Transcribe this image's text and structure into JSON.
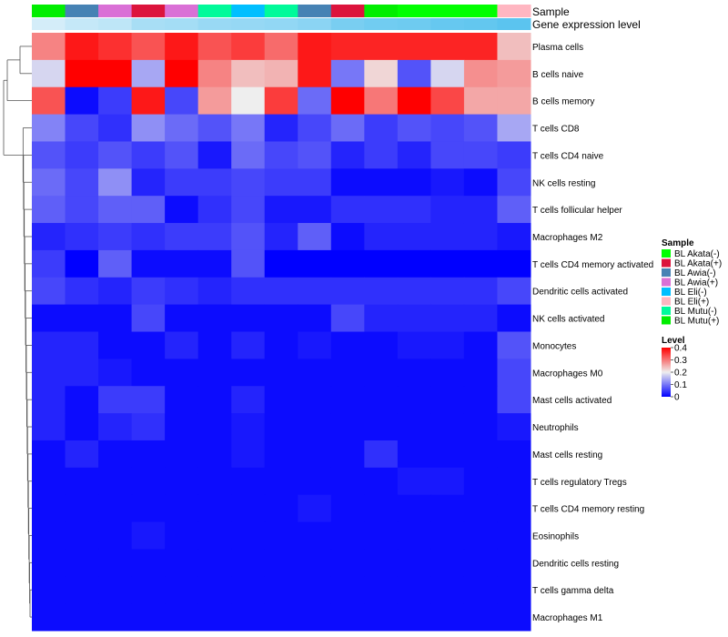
{
  "chart_data": {
    "type": "heatmap",
    "annotation_rows": [
      "Sample",
      "Gene expression level"
    ],
    "columns": [
      {
        "sample": "BL Mutu(+)",
        "sample_color": "#00EE00",
        "expr": 0.05
      },
      {
        "sample": "BL Awia(-)",
        "sample_color": "#4682B4",
        "expr": 0.09
      },
      {
        "sample": "BL Awia(+)",
        "sample_color": "#DA70D6",
        "expr": 0.11
      },
      {
        "sample": "BL Akata(+)",
        "sample_color": "#DC143C",
        "expr": 0.17
      },
      {
        "sample": "BL Awia(+)",
        "sample_color": "#DA70D6",
        "expr": 0.18
      },
      {
        "sample": "BL Mutu(-)",
        "sample_color": "#00FA9A",
        "expr": 0.21
      },
      {
        "sample": "BL Eli(-)",
        "sample_color": "#00BFFF",
        "expr": 0.22
      },
      {
        "sample": "BL Mutu(-)",
        "sample_color": "#00FA9A",
        "expr": 0.23
      },
      {
        "sample": "BL Awia(-)",
        "sample_color": "#4682B4",
        "expr": 0.25
      },
      {
        "sample": "BL Akata(+)",
        "sample_color": "#DC143C",
        "expr": 0.3
      },
      {
        "sample": "BL Mutu(+)",
        "sample_color": "#00EE00",
        "expr": 0.32
      },
      {
        "sample": "BL Akata(-)",
        "sample_color": "#00FF00",
        "expr": 0.33
      },
      {
        "sample": "BL Akata(-)",
        "sample_color": "#00FF00",
        "expr": 0.35
      },
      {
        "sample": "BL Akata(-)",
        "sample_color": "#00FF00",
        "expr": 0.36
      },
      {
        "sample": "BL Eli(+)",
        "sample_color": "#FFB6C1",
        "expr": 0.38
      }
    ],
    "rows": [
      "Plasma cells",
      "B cells naive",
      "B cells memory",
      "T cells CD8",
      "T cells CD4 naive",
      "NK cells resting",
      "T cells follicular helper",
      "Macrophages M2",
      "T cells CD4 memory activated",
      "Dendritic cells activated",
      "NK cells activated",
      "Monocytes",
      "Macrophages M0",
      "Mast cells activated",
      "Neutrophils",
      "Mast cells resting",
      "T cells regulatory  Tregs",
      "T cells CD4 memory resting",
      "Eosinophils",
      "Dendritic cells resting",
      "T cells gamma delta",
      "Macrophages M1"
    ],
    "values": [
      [
        0.29,
        0.38,
        0.36,
        0.33,
        0.38,
        0.33,
        0.35,
        0.31,
        0.38,
        0.37,
        0.37,
        0.37,
        0.37,
        0.37,
        0.24
      ],
      [
        0.18,
        0.4,
        0.4,
        0.14,
        0.4,
        0.29,
        0.24,
        0.25,
        0.38,
        0.1,
        0.22,
        0.07,
        0.18,
        0.28,
        0.27
      ],
      [
        0.33,
        0.01,
        0.05,
        0.38,
        0.06,
        0.27,
        0.2,
        0.35,
        0.09,
        0.4,
        0.3,
        0.4,
        0.34,
        0.26,
        0.26
      ],
      [
        0.11,
        0.06,
        0.04,
        0.12,
        0.09,
        0.07,
        0.1,
        0.03,
        0.06,
        0.09,
        0.05,
        0.07,
        0.06,
        0.07,
        0.14
      ],
      [
        0.07,
        0.05,
        0.07,
        0.05,
        0.07,
        0.02,
        0.09,
        0.06,
        0.07,
        0.03,
        0.05,
        0.03,
        0.06,
        0.06,
        0.05
      ],
      [
        0.09,
        0.06,
        0.12,
        0.03,
        0.05,
        0.05,
        0.06,
        0.05,
        0.05,
        0.01,
        0.01,
        0.01,
        0.02,
        0.01,
        0.06
      ],
      [
        0.08,
        0.06,
        0.08,
        0.08,
        0.01,
        0.04,
        0.06,
        0.02,
        0.02,
        0.04,
        0.04,
        0.04,
        0.03,
        0.03,
        0.08
      ],
      [
        0.03,
        0.04,
        0.05,
        0.04,
        0.05,
        0.05,
        0.07,
        0.03,
        0.08,
        0.01,
        0.03,
        0.03,
        0.03,
        0.03,
        0.02
      ],
      [
        0.05,
        0.0,
        0.08,
        0.01,
        0.01,
        0.01,
        0.07,
        0.0,
        0.0,
        0.0,
        0.0,
        0.0,
        0.0,
        0.0,
        0.0
      ],
      [
        0.06,
        0.04,
        0.03,
        0.05,
        0.04,
        0.03,
        0.04,
        0.04,
        0.04,
        0.04,
        0.04,
        0.04,
        0.04,
        0.04,
        0.06
      ],
      [
        0.01,
        0.01,
        0.01,
        0.06,
        0.01,
        0.01,
        0.01,
        0.01,
        0.01,
        0.06,
        0.03,
        0.03,
        0.03,
        0.03,
        0.01
      ],
      [
        0.03,
        0.03,
        0.01,
        0.01,
        0.03,
        0.01,
        0.03,
        0.01,
        0.02,
        0.01,
        0.01,
        0.02,
        0.02,
        0.01,
        0.07
      ],
      [
        0.03,
        0.03,
        0.02,
        0.01,
        0.01,
        0.01,
        0.01,
        0.01,
        0.01,
        0.01,
        0.01,
        0.01,
        0.01,
        0.01,
        0.06
      ],
      [
        0.03,
        0.01,
        0.05,
        0.05,
        0.01,
        0.01,
        0.03,
        0.01,
        0.01,
        0.01,
        0.01,
        0.01,
        0.01,
        0.01,
        0.06
      ],
      [
        0.03,
        0.01,
        0.03,
        0.04,
        0.01,
        0.01,
        0.02,
        0.01,
        0.01,
        0.01,
        0.01,
        0.01,
        0.01,
        0.01,
        0.02
      ],
      [
        0.01,
        0.03,
        0.01,
        0.01,
        0.01,
        0.01,
        0.02,
        0.01,
        0.01,
        0.01,
        0.04,
        0.01,
        0.01,
        0.01,
        0.01
      ],
      [
        0.01,
        0.01,
        0.01,
        0.01,
        0.01,
        0.01,
        0.01,
        0.01,
        0.01,
        0.01,
        0.01,
        0.02,
        0.02,
        0.01,
        0.01
      ],
      [
        0.01,
        0.01,
        0.01,
        0.01,
        0.01,
        0.01,
        0.01,
        0.01,
        0.02,
        0.01,
        0.01,
        0.01,
        0.01,
        0.01,
        0.01
      ],
      [
        0.01,
        0.01,
        0.01,
        0.02,
        0.01,
        0.01,
        0.01,
        0.01,
        0.01,
        0.01,
        0.01,
        0.01,
        0.01,
        0.01,
        0.01
      ],
      [
        0.01,
        0.01,
        0.01,
        0.01,
        0.01,
        0.01,
        0.01,
        0.01,
        0.01,
        0.01,
        0.01,
        0.01,
        0.01,
        0.01,
        0.01
      ],
      [
        0.01,
        0.01,
        0.01,
        0.01,
        0.01,
        0.01,
        0.01,
        0.01,
        0.01,
        0.01,
        0.01,
        0.01,
        0.01,
        0.01,
        0.01
      ],
      [
        0.01,
        0.01,
        0.01,
        0.01,
        0.01,
        0.01,
        0.01,
        0.01,
        0.01,
        0.01,
        0.01,
        0.01,
        0.01,
        0.01,
        0.01
      ]
    ],
    "color_scale": {
      "min": 0,
      "mid": 0.2,
      "max": 0.4,
      "low_color": "#0000FF",
      "mid_color": "#EEEEEE",
      "high_color": "#FF0000"
    },
    "expr_scale": {
      "low_color": "#E6F3FB",
      "high_color": "#54C2EE"
    },
    "legend": {
      "sample_title": "Sample",
      "sample_entries": [
        {
          "label": "BL Akata(-)",
          "color": "#00FF00"
        },
        {
          "label": "BL Akata(+)",
          "color": "#DC143C"
        },
        {
          "label": "BL Awia(-)",
          "color": "#4682B4"
        },
        {
          "label": "BL Awia(+)",
          "color": "#DA70D6"
        },
        {
          "label": "BL Eli(-)",
          "color": "#00BFFF"
        },
        {
          "label": "BL Eli(+)",
          "color": "#FFB6C1"
        },
        {
          "label": "BL Mutu(-)",
          "color": "#00FA9A"
        },
        {
          "label": "BL Mutu(+)",
          "color": "#00EE00"
        }
      ],
      "level_title": "Level",
      "level_ticks": [
        "0.4",
        "0.3",
        "0.2",
        "0.1",
        "0"
      ],
      "level_tick_values": [
        0.4,
        0.3,
        0.2,
        0.1,
        0
      ]
    }
  }
}
